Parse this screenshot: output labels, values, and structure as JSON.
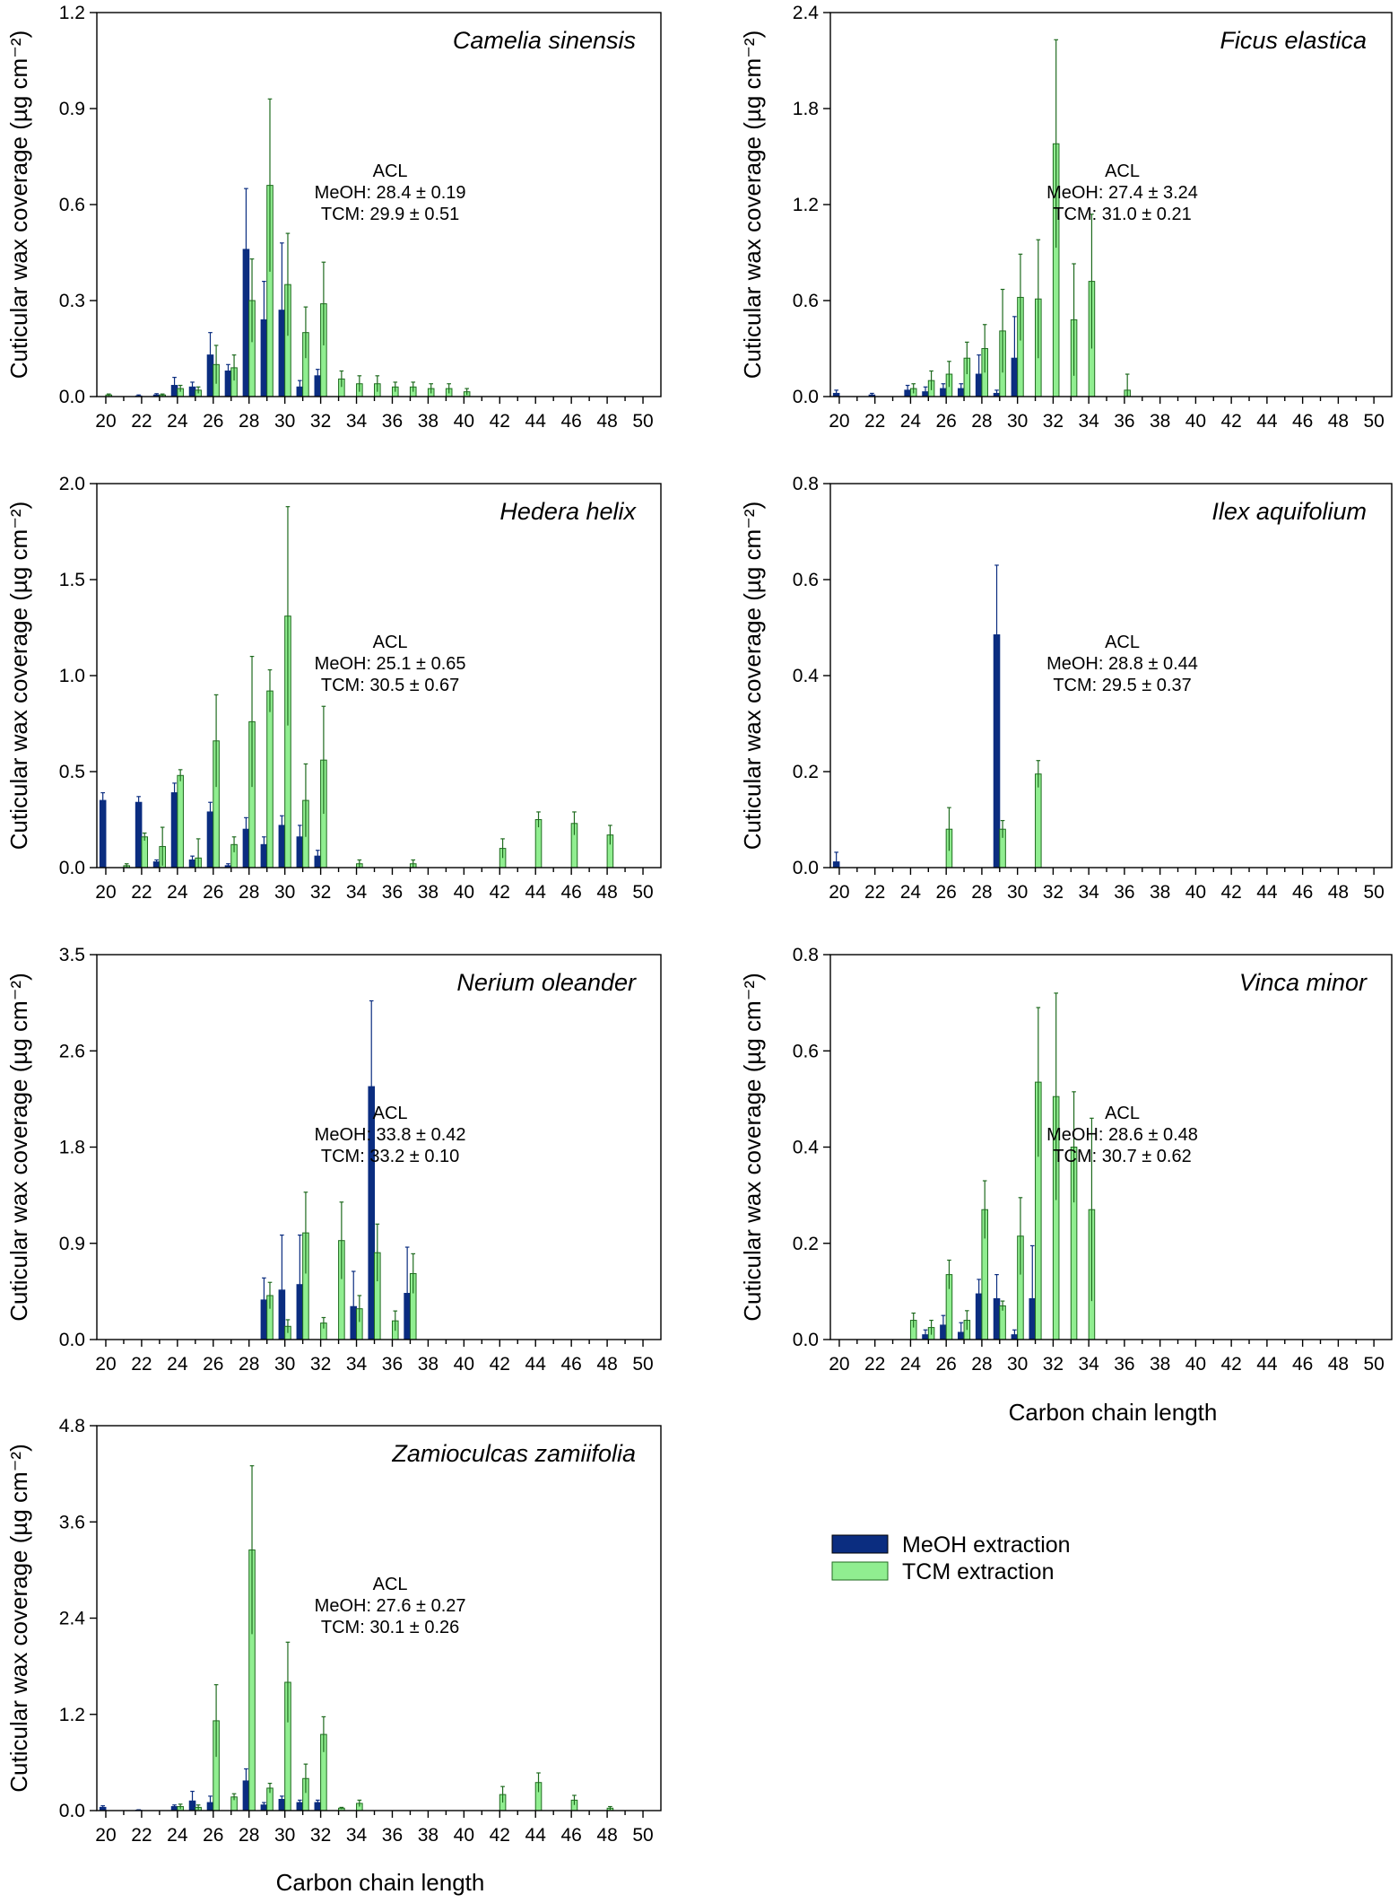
{
  "colors": {
    "meoh": "#0b2d80",
    "tcm": "#90ee90",
    "tcm_edge": "#1f6b1f",
    "axis": "#000000"
  },
  "common": {
    "xlabel": "Carbon chain length",
    "ylabel": "Cuticular wax coverage (µg cm⁻²)",
    "x_ticks": [
      20,
      22,
      24,
      26,
      28,
      30,
      32,
      34,
      36,
      38,
      40,
      42,
      44,
      46,
      48,
      50
    ],
    "xlim": [
      19.5,
      51
    ]
  },
  "legend": {
    "items": [
      {
        "label": "MeOH extraction",
        "color_key": "meoh"
      },
      {
        "label": "TCM extraction",
        "color_key": "tcm"
      }
    ]
  },
  "chart_data": [
    {
      "type": "bar",
      "title": "Camelia sinensis",
      "ylim": [
        0,
        1.2
      ],
      "y_ticks": [
        "0.0",
        "0.3",
        "0.6",
        "0.9",
        "1.2"
      ],
      "acl": {
        "heading": "ACL",
        "meoh": "MeOH: 28.4 ± 0.19",
        "tcm": "TCM:    29.9 ± 0.51"
      },
      "series": [
        {
          "name": "MeOH extraction",
          "x": [
            22,
            23,
            24,
            25,
            26,
            27,
            28,
            29,
            30,
            31,
            32
          ],
          "values": [
            0.002,
            0.005,
            0.035,
            0.03,
            0.13,
            0.08,
            0.46,
            0.24,
            0.27,
            0.03,
            0.065
          ],
          "errors": [
            0.003,
            0.004,
            0.025,
            0.015,
            0.07,
            0.02,
            0.19,
            0.12,
            0.21,
            0.02,
            0.02
          ]
        },
        {
          "name": "TCM extraction",
          "x": [
            20,
            23,
            24,
            25,
            26,
            27,
            28,
            29,
            30,
            31,
            32,
            33,
            34,
            35,
            36,
            37,
            38,
            39,
            40
          ],
          "values": [
            0.005,
            0.005,
            0.025,
            0.02,
            0.1,
            0.09,
            0.3,
            0.66,
            0.35,
            0.2,
            0.29,
            0.055,
            0.04,
            0.04,
            0.03,
            0.03,
            0.025,
            0.025,
            0.015
          ],
          "errors": [
            0.003,
            0.003,
            0.01,
            0.01,
            0.06,
            0.04,
            0.13,
            0.27,
            0.16,
            0.08,
            0.13,
            0.025,
            0.025,
            0.025,
            0.015,
            0.015,
            0.015,
            0.015,
            0.01
          ]
        }
      ]
    },
    {
      "type": "bar",
      "title": "Ficus elastica",
      "ylim": [
        0,
        2.4
      ],
      "y_ticks": [
        "0.0",
        "0.6",
        "1.2",
        "1.8",
        "2.4"
      ],
      "acl": {
        "heading": "ACL",
        "meoh": "MeOH: 27.4 ± 3.24",
        "tcm": "TCM:    31.0 ± 0.21"
      },
      "series": [
        {
          "name": "MeOH extraction",
          "x": [
            20,
            22,
            24,
            25,
            26,
            27,
            28,
            29,
            30
          ],
          "values": [
            0.02,
            0.01,
            0.04,
            0.03,
            0.05,
            0.05,
            0.14,
            0.02,
            0.24
          ],
          "errors": [
            0.02,
            0.01,
            0.03,
            0.03,
            0.03,
            0.03,
            0.12,
            0.02,
            0.26
          ]
        },
        {
          "name": "TCM extraction",
          "x": [
            24,
            25,
            26,
            27,
            28,
            29,
            30,
            31,
            32,
            33,
            34,
            36
          ],
          "values": [
            0.05,
            0.1,
            0.14,
            0.24,
            0.3,
            0.41,
            0.62,
            0.61,
            1.58,
            0.48,
            0.72,
            0.04
          ],
          "errors": [
            0.03,
            0.06,
            0.08,
            0.1,
            0.15,
            0.26,
            0.27,
            0.37,
            0.65,
            0.35,
            0.42,
            0.1
          ]
        }
      ]
    },
    {
      "type": "bar",
      "title": "Hedera helix",
      "ylim": [
        0,
        2.0
      ],
      "y_ticks": [
        "0.0",
        "0.5",
        "1.0",
        "1.5",
        "2.0"
      ],
      "acl": {
        "heading": "ACL",
        "meoh": "MeOH: 25.1 ± 0.65",
        "tcm": "TCM:    30.5 ± 0.67"
      },
      "series": [
        {
          "name": "MeOH extraction",
          "x": [
            20,
            22,
            23,
            24,
            25,
            26,
            27,
            28,
            29,
            30,
            31,
            32
          ],
          "values": [
            0.35,
            0.34,
            0.03,
            0.39,
            0.04,
            0.29,
            0.01,
            0.2,
            0.12,
            0.22,
            0.16,
            0.06
          ],
          "errors": [
            0.04,
            0.03,
            0.01,
            0.05,
            0.02,
            0.05,
            0.01,
            0.06,
            0.04,
            0.05,
            0.06,
            0.03
          ]
        },
        {
          "name": "TCM extraction",
          "x": [
            21,
            22,
            23,
            24,
            25,
            26,
            27,
            28,
            29,
            30,
            31,
            32,
            34,
            37,
            42,
            44,
            46,
            48
          ],
          "values": [
            0.01,
            0.16,
            0.11,
            0.48,
            0.05,
            0.66,
            0.12,
            0.76,
            0.92,
            1.31,
            0.35,
            0.56,
            0.02,
            0.02,
            0.1,
            0.25,
            0.23,
            0.17
          ],
          "errors": [
            0.01,
            0.02,
            0.1,
            0.03,
            0.1,
            0.24,
            0.04,
            0.34,
            0.11,
            0.57,
            0.19,
            0.28,
            0.02,
            0.02,
            0.05,
            0.04,
            0.06,
            0.05
          ]
        }
      ]
    },
    {
      "type": "bar",
      "title": "Ilex aquifolium",
      "ylim": [
        0,
        0.8
      ],
      "y_ticks": [
        "0.0",
        "0.2",
        "0.4",
        "0.6",
        "0.8"
      ],
      "acl": {
        "heading": "ACL",
        "meoh": "MeOH: 28.8 ± 0.44",
        "tcm": "TCM:    29.5 ± 0.37"
      },
      "series": [
        {
          "name": "MeOH extraction",
          "x": [
            20,
            29
          ],
          "values": [
            0.012,
            0.485
          ],
          "errors": [
            0.02,
            0.145
          ]
        },
        {
          "name": "TCM extraction",
          "x": [
            26,
            29,
            31
          ],
          "values": [
            0.08,
            0.08,
            0.195
          ],
          "errors": [
            0.045,
            0.018,
            0.028
          ]
        }
      ]
    },
    {
      "type": "bar",
      "title": "Nerium oleander",
      "ylim": [
        0,
        3.5
      ],
      "y_ticks": [
        "0.0",
        "0.9",
        "1.8",
        "2.6",
        "3.5"
      ],
      "acl": {
        "heading": "ACL",
        "meoh": "MeOH: 33.8 ± 0.42",
        "tcm": "TCM:    33.2 ± 0.10"
      },
      "series": [
        {
          "name": "MeOH extraction",
          "x": [
            29,
            30,
            31,
            34,
            35,
            37
          ],
          "values": [
            0.36,
            0.45,
            0.5,
            0.3,
            2.3,
            0.42
          ],
          "errors": [
            0.2,
            0.5,
            0.45,
            0.32,
            0.78,
            0.42
          ]
        },
        {
          "name": "TCM extraction",
          "x": [
            29,
            30,
            31,
            32,
            33,
            34,
            35,
            36,
            37
          ],
          "values": [
            0.4,
            0.12,
            0.97,
            0.15,
            0.9,
            0.28,
            0.79,
            0.17,
            0.6
          ],
          "errors": [
            0.12,
            0.06,
            0.37,
            0.05,
            0.35,
            0.12,
            0.26,
            0.09,
            0.18
          ]
        }
      ]
    },
    {
      "type": "bar",
      "title": "Vinca minor",
      "ylim": [
        0,
        0.8
      ],
      "y_ticks": [
        "0.0",
        "0.2",
        "0.4",
        "0.6",
        "0.8"
      ],
      "acl": {
        "heading": "ACL",
        "meoh": "MeOH: 28.6 ± 0.48",
        "tcm": "TCM:    30.7 ± 0.62"
      },
      "series": [
        {
          "name": "MeOH extraction",
          "x": [
            25,
            26,
            27,
            28,
            29,
            30,
            31
          ],
          "values": [
            0.01,
            0.03,
            0.015,
            0.095,
            0.085,
            0.01,
            0.085
          ],
          "errors": [
            0.01,
            0.02,
            0.02,
            0.03,
            0.05,
            0.01,
            0.11
          ]
        },
        {
          "name": "TCM extraction",
          "x": [
            24,
            25,
            26,
            27,
            28,
            29,
            30,
            31,
            32,
            33,
            34
          ],
          "values": [
            0.04,
            0.025,
            0.135,
            0.04,
            0.27,
            0.07,
            0.215,
            0.535,
            0.505,
            0.4,
            0.27
          ],
          "errors": [
            0.015,
            0.015,
            0.03,
            0.02,
            0.06,
            0.01,
            0.08,
            0.155,
            0.215,
            0.115,
            0.19
          ]
        }
      ]
    },
    {
      "type": "bar",
      "title": "Zamioculcas zamiifolia",
      "ylim": [
        0,
        4.8
      ],
      "y_ticks": [
        "0.0",
        "1.2",
        "2.4",
        "3.6",
        "4.8"
      ],
      "acl": {
        "heading": "ACL",
        "meoh": "MeOH: 27.6 ± 0.27",
        "tcm": "TCM:    30.1 ± 0.26"
      },
      "series": [
        {
          "name": "MeOH extraction",
          "x": [
            20,
            22,
            24,
            25,
            26,
            28,
            29,
            30,
            31,
            32
          ],
          "values": [
            0.04,
            0.005,
            0.05,
            0.12,
            0.1,
            0.37,
            0.07,
            0.14,
            0.1,
            0.1
          ],
          "errors": [
            0.02,
            0.005,
            0.02,
            0.12,
            0.08,
            0.15,
            0.03,
            0.04,
            0.03,
            0.03
          ]
        },
        {
          "name": "TCM extraction",
          "x": [
            24,
            25,
            26,
            27,
            28,
            29,
            30,
            31,
            32,
            33,
            34,
            42,
            44,
            46,
            48
          ],
          "values": [
            0.05,
            0.04,
            1.12,
            0.17,
            3.25,
            0.28,
            1.6,
            0.4,
            0.95,
            0.03,
            0.09,
            0.2,
            0.35,
            0.13,
            0.03
          ],
          "errors": [
            0.03,
            0.03,
            0.45,
            0.04,
            1.05,
            0.06,
            0.5,
            0.18,
            0.22,
            0.01,
            0.04,
            0.1,
            0.12,
            0.06,
            0.02
          ]
        }
      ]
    }
  ]
}
